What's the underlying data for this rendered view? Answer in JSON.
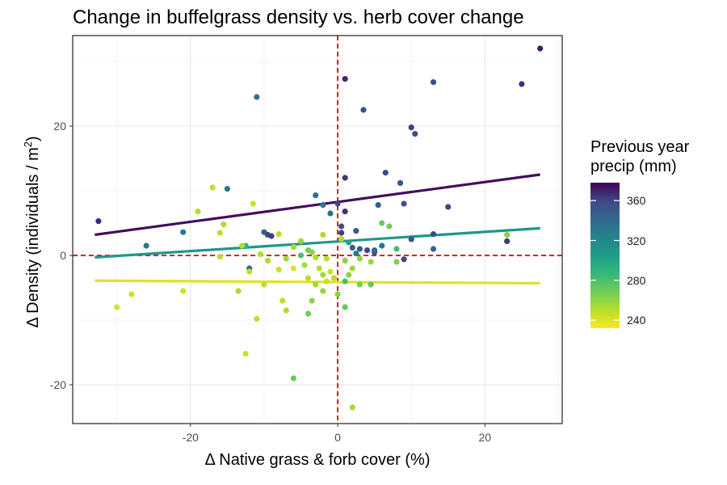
{
  "chart_data": {
    "type": "scatter",
    "title": "Change in buffelgrass density vs. herb cover change",
    "xlabel": "Δ Native grass & forb cover (%)",
    "ylabel": "Δ Density (individuals / m",
    "ylabel_superscript": "2",
    "ylabel_suffix": ")",
    "xlim": [
      -36,
      30.5
    ],
    "ylim": [
      -26,
      34
    ],
    "x_ticks": [
      -20,
      0,
      20
    ],
    "x_tick_labels": [
      "-20",
      "0",
      "20"
    ],
    "y_ticks": [
      -20,
      0,
      20
    ],
    "y_tick_labels": [
      "-20",
      "0",
      "20"
    ],
    "grid": true,
    "reference_lines": {
      "x": 0,
      "y": 0,
      "color": "#dd0000",
      "style": "dashed"
    },
    "legend": {
      "title_lines": [
        "Previous year",
        "precip (mm)"
      ],
      "position": "right",
      "min": 232,
      "max": 378,
      "ticks": [
        240,
        280,
        320,
        360
      ],
      "tick_labels": [
        "240",
        "280",
        "320",
        "360"
      ]
    },
    "fit_lines": [
      {
        "precip": 375,
        "x": [
          -33,
          27.5
        ],
        "y": [
          3.2,
          12.5
        ]
      },
      {
        "precip": 310,
        "x": [
          -33,
          27.5
        ],
        "y": [
          -0.3,
          4.2
        ]
      },
      {
        "precip": 240,
        "x": [
          -33,
          27.5
        ],
        "y": [
          -3.9,
          -4.3
        ]
      }
    ],
    "points": [
      {
        "x": 27.5,
        "y": 32,
        "precip": 372
      },
      {
        "x": 25,
        "y": 26.5,
        "precip": 366
      },
      {
        "x": 13,
        "y": 26.8,
        "precip": 358
      },
      {
        "x": 1,
        "y": 27.3,
        "precip": 368
      },
      {
        "x": 3.5,
        "y": 22.5,
        "precip": 355
      },
      {
        "x": -11,
        "y": 24.5,
        "precip": 335
      },
      {
        "x": 10,
        "y": 19.8,
        "precip": 362
      },
      {
        "x": 10.5,
        "y": 18.8,
        "precip": 357
      },
      {
        "x": -32.5,
        "y": 5.3,
        "precip": 368
      },
      {
        "x": -26,
        "y": 1.5,
        "precip": 333
      },
      {
        "x": -21,
        "y": 3.6,
        "precip": 328
      },
      {
        "x": -15,
        "y": 10.3,
        "precip": 330
      },
      {
        "x": 1,
        "y": 12,
        "precip": 365
      },
      {
        "x": 6.5,
        "y": 12.8,
        "precip": 360
      },
      {
        "x": 8.5,
        "y": 11.2,
        "precip": 352
      },
      {
        "x": -3,
        "y": 9.3,
        "precip": 336
      },
      {
        "x": 0,
        "y": 8,
        "precip": 360
      },
      {
        "x": 9,
        "y": 8,
        "precip": 355
      },
      {
        "x": 15,
        "y": 7.5,
        "precip": 360
      },
      {
        "x": 5.5,
        "y": 7.8,
        "precip": 348
      },
      {
        "x": -2,
        "y": 7.8,
        "precip": 332
      },
      {
        "x": -1,
        "y": 6.5,
        "precip": 340
      },
      {
        "x": 1,
        "y": 6.8,
        "precip": 365
      },
      {
        "x": 0.5,
        "y": 4.5,
        "precip": 355
      },
      {
        "x": 0.5,
        "y": 3.5,
        "precip": 362
      },
      {
        "x": 2.5,
        "y": 3.8,
        "precip": 350
      },
      {
        "x": -10,
        "y": 3.6,
        "precip": 348
      },
      {
        "x": -9.5,
        "y": 3.2,
        "precip": 360
      },
      {
        "x": -9,
        "y": 3.0,
        "precip": 362
      },
      {
        "x": 13,
        "y": 3.3,
        "precip": 360
      },
      {
        "x": 10,
        "y": 2.5,
        "precip": 355
      },
      {
        "x": 23,
        "y": 3.2,
        "precip": 262
      },
      {
        "x": 23,
        "y": 2.2,
        "precip": 364
      },
      {
        "x": -12.5,
        "y": 1.5,
        "precip": 290
      },
      {
        "x": -12,
        "y": -2,
        "precip": 340
      },
      {
        "x": 13,
        "y": 1.0,
        "precip": 345
      },
      {
        "x": 8,
        "y": 1.0,
        "precip": 282
      },
      {
        "x": 9,
        "y": -0.6,
        "precip": 360
      },
      {
        "x": 6,
        "y": 1.5,
        "precip": 330
      },
      {
        "x": 5,
        "y": 0.5,
        "precip": 358
      },
      {
        "x": 5,
        "y": 0.8,
        "precip": 340
      },
      {
        "x": 4,
        "y": 0.8,
        "precip": 360
      },
      {
        "x": 2,
        "y": 1.2,
        "precip": 345
      },
      {
        "x": 2.5,
        "y": 0.3,
        "precip": 330
      },
      {
        "x": 3,
        "y": 1.0,
        "precip": 350
      },
      {
        "x": 1.5,
        "y": 2.0,
        "precip": 300
      },
      {
        "x": 0.5,
        "y": 2.5,
        "precip": 262
      },
      {
        "x": 6,
        "y": 5.0,
        "precip": 272
      },
      {
        "x": 7,
        "y": 4.5,
        "precip": 268
      },
      {
        "x": 8,
        "y": -1.0,
        "precip": 265
      },
      {
        "x": -17,
        "y": 10.5,
        "precip": 248
      },
      {
        "x": -11.5,
        "y": 8.0,
        "precip": 245
      },
      {
        "x": -19,
        "y": 6.8,
        "precip": 250
      },
      {
        "x": -15.5,
        "y": 4.8,
        "precip": 252
      },
      {
        "x": -16,
        "y": 3.5,
        "precip": 248
      },
      {
        "x": -8,
        "y": 3.3,
        "precip": 250
      },
      {
        "x": -2,
        "y": 3.2,
        "precip": 252
      },
      {
        "x": 0.5,
        "y": 2.6,
        "precip": 250
      },
      {
        "x": -5,
        "y": 2.2,
        "precip": 258
      },
      {
        "x": -6,
        "y": 1.3,
        "precip": 255
      },
      {
        "x": -4,
        "y": 0.8,
        "precip": 270
      },
      {
        "x": -3.5,
        "y": 0.5,
        "precip": 262
      },
      {
        "x": -5,
        "y": 0.0,
        "precip": 280
      },
      {
        "x": -10.5,
        "y": 0.2,
        "precip": 250
      },
      {
        "x": -13,
        "y": 1.5,
        "precip": 250
      },
      {
        "x": -16,
        "y": -0.2,
        "precip": 248
      },
      {
        "x": -9.5,
        "y": -0.8,
        "precip": 252
      },
      {
        "x": -7,
        "y": -0.5,
        "precip": 255
      },
      {
        "x": -3,
        "y": -0.3,
        "precip": 252
      },
      {
        "x": -1.5,
        "y": -0.5,
        "precip": 248
      },
      {
        "x": 1,
        "y": -0.8,
        "precip": 262
      },
      {
        "x": 3,
        "y": -0.5,
        "precip": 260
      },
      {
        "x": 4.5,
        "y": -1.0,
        "precip": 258
      },
      {
        "x": -4.5,
        "y": -1.5,
        "precip": 255
      },
      {
        "x": -2.5,
        "y": -2.0,
        "precip": 250
      },
      {
        "x": -1,
        "y": -2.5,
        "precip": 245
      },
      {
        "x": -6,
        "y": -2.0,
        "precip": 240
      },
      {
        "x": -8,
        "y": -2.2,
        "precip": 245
      },
      {
        "x": -12,
        "y": -2.5,
        "precip": 248
      },
      {
        "x": 2,
        "y": -2.0,
        "precip": 256
      },
      {
        "x": 1.5,
        "y": -3.0,
        "precip": 260
      },
      {
        "x": -2,
        "y": -3.0,
        "precip": 255
      },
      {
        "x": -0.5,
        "y": -3.5,
        "precip": 250
      },
      {
        "x": -1.5,
        "y": -4.0,
        "precip": 245
      },
      {
        "x": -4,
        "y": -3.5,
        "precip": 250
      },
      {
        "x": -3,
        "y": -4.5,
        "precip": 255
      },
      {
        "x": -2,
        "y": -5.5,
        "precip": 260
      },
      {
        "x": 0,
        "y": -6.0,
        "precip": 262
      },
      {
        "x": 1,
        "y": -4.0,
        "precip": 280
      },
      {
        "x": 3,
        "y": -4.5,
        "precip": 268
      },
      {
        "x": 4.5,
        "y": -4.5,
        "precip": 275
      },
      {
        "x": -10,
        "y": -4.5,
        "precip": 250
      },
      {
        "x": -13.5,
        "y": -5.5,
        "precip": 252
      },
      {
        "x": -21,
        "y": -5.5,
        "precip": 245
      },
      {
        "x": -7.5,
        "y": -7.0,
        "precip": 248
      },
      {
        "x": -7,
        "y": -8.5,
        "precip": 252
      },
      {
        "x": -3.5,
        "y": -7.0,
        "precip": 262
      },
      {
        "x": -4,
        "y": -9.0,
        "precip": 268
      },
      {
        "x": 1,
        "y": -8.0,
        "precip": 272
      },
      {
        "x": -30,
        "y": -8.0,
        "precip": 242
      },
      {
        "x": -28,
        "y": -6.0,
        "precip": 245
      },
      {
        "x": -11,
        "y": -9.8,
        "precip": 248
      },
      {
        "x": -12.5,
        "y": -15.2,
        "precip": 245
      },
      {
        "x": -6,
        "y": -19.0,
        "precip": 270
      },
      {
        "x": 2,
        "y": -23.5,
        "precip": 255
      }
    ]
  }
}
